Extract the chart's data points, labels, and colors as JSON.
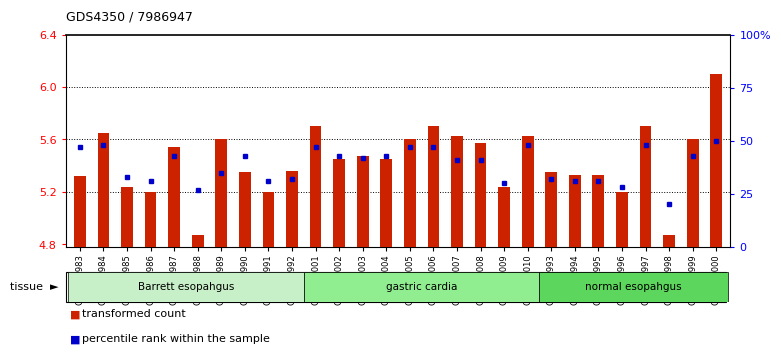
{
  "title": "GDS4350 / 7986947",
  "samples": [
    "GSM851983",
    "GSM851984",
    "GSM851985",
    "GSM851986",
    "GSM851987",
    "GSM851988",
    "GSM851989",
    "GSM851990",
    "GSM851991",
    "GSM851992",
    "GSM852001",
    "GSM852002",
    "GSM852003",
    "GSM852004",
    "GSM852005",
    "GSM852006",
    "GSM852007",
    "GSM852008",
    "GSM852009",
    "GSM852010",
    "GSM851993",
    "GSM851994",
    "GSM851995",
    "GSM851996",
    "GSM851997",
    "GSM851998",
    "GSM851999",
    "GSM852000"
  ],
  "bar_values": [
    5.32,
    5.65,
    5.24,
    5.2,
    5.54,
    4.87,
    5.6,
    5.35,
    5.2,
    5.36,
    5.7,
    5.45,
    5.47,
    5.45,
    5.6,
    5.7,
    5.63,
    5.57,
    5.24,
    5.63,
    5.35,
    5.33,
    5.33,
    5.2,
    5.7,
    4.87,
    5.6,
    6.1
  ],
  "percentile_values": [
    47,
    48,
    33,
    31,
    43,
    27,
    35,
    43,
    31,
    32,
    47,
    43,
    42,
    43,
    47,
    47,
    41,
    41,
    30,
    48,
    32,
    31,
    31,
    28,
    48,
    20,
    43,
    50
  ],
  "groups": [
    {
      "label": "Barrett esopahgus",
      "start": 0,
      "end": 10,
      "color": "#c8f0c8"
    },
    {
      "label": "gastric cardia",
      "start": 10,
      "end": 20,
      "color": "#90ee90"
    },
    {
      "label": "normal esopahgus",
      "start": 20,
      "end": 28,
      "color": "#5cd65c"
    }
  ],
  "bar_color": "#cc2200",
  "dot_color": "#0000cc",
  "ylim_left": [
    4.78,
    6.4
  ],
  "ylim_right": [
    0,
    100
  ],
  "yticks_left": [
    4.8,
    5.2,
    5.6,
    6.0,
    6.4
  ],
  "yticks_right": [
    0,
    25,
    50,
    75,
    100
  ],
  "ytick_labels_right": [
    "0",
    "25",
    "50",
    "75",
    "100%"
  ],
  "grid_values": [
    5.2,
    5.6,
    6.0
  ],
  "bar_base": 4.78,
  "bar_width": 0.5
}
